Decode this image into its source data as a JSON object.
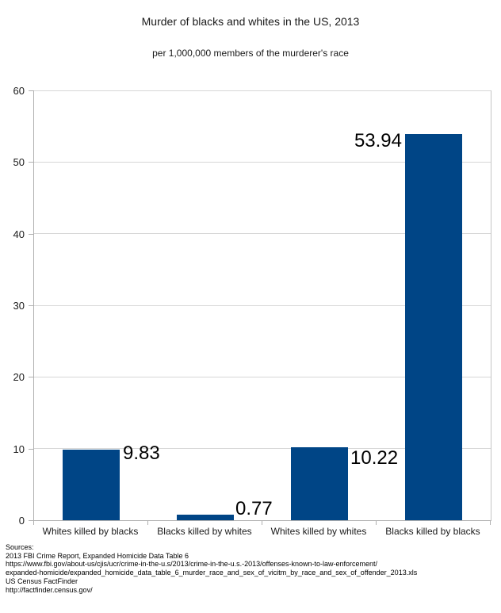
{
  "title": "Murder of blacks and whites in the US, 2013",
  "subtitle": "per 1,000,000 members of the murderer's race",
  "chart_data": {
    "type": "bar",
    "title": "Murder of blacks and whites in the US, 2013",
    "subtitle": "per 1,000,000 members of the murderer's race",
    "categories": [
      "Whites killed by blacks",
      "Blacks killed by whites",
      "Whites killed by whites",
      "Blacks killed by blacks"
    ],
    "values": [
      9.83,
      0.77,
      10.22,
      53.94
    ],
    "value_labels": [
      "9.83",
      "0.77",
      "10.22",
      "53.94"
    ],
    "xlabel": "",
    "ylabel": "",
    "ylim": [
      0,
      60
    ],
    "yticks": [
      0,
      10,
      20,
      30,
      40,
      50,
      60
    ],
    "grid": "horizontal",
    "legend": "none",
    "bar_color": "#004586",
    "gridline_color": "#d6d6d6",
    "axis_color": "#b0b0b0",
    "label_color": "#000000"
  },
  "sources": {
    "lines": [
      "Sources:",
      "2013 FBI Crime Report, Expanded Homicide Data Table 6",
      "https://www.fbi.gov/about-us/cjis/ucr/crime-in-the-u.s/2013/crime-in-the-u.s.-2013/offenses-known-to-law-enforcement/",
      "expanded-homicide/expanded_homicide_data_table_6_murder_race_and_sex_of_vicitm_by_race_and_sex_of_offender_2013.xls",
      "US Census FactFinder",
      "http://factfinder.census.gov/"
    ]
  }
}
